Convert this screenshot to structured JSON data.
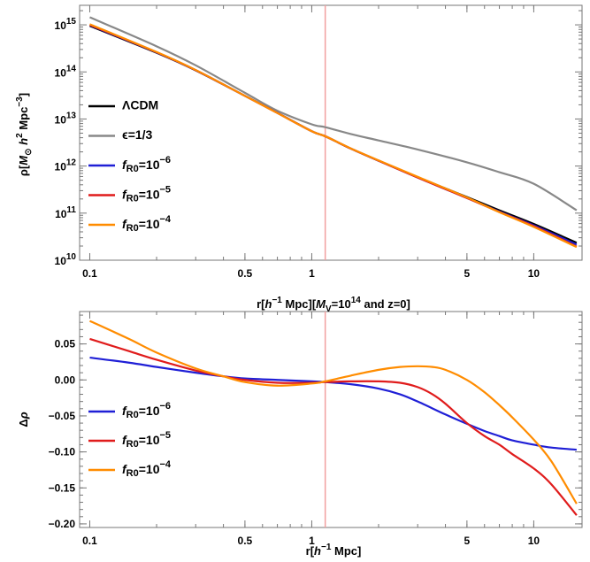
{
  "chart_data": [
    {
      "type": "line",
      "xscale": "log",
      "yscale": "log",
      "xlim": [
        0.09,
        16.5
      ],
      "ylim": [
        10000000000.0,
        2600000000000000.0
      ],
      "xticks": [
        0.1,
        0.5,
        1,
        5,
        10
      ],
      "xtick_labels": [
        "0.1",
        "0.5",
        "1",
        "5",
        "10"
      ],
      "yticks": [
        10000000000.0,
        100000000000.0,
        1000000000000.0,
        10000000000000.0,
        100000000000000.0,
        1000000000000000.0
      ],
      "ytick_labels": [
        {
          "base": "10",
          "exp": "10"
        },
        {
          "base": "10",
          "exp": "11"
        },
        {
          "base": "10",
          "exp": "12"
        },
        {
          "base": "10",
          "exp": "13"
        },
        {
          "base": "10",
          "exp": "14"
        },
        {
          "base": "10",
          "exp": "15"
        }
      ],
      "xlabel": {
        "pre": "r[",
        "italic1": "h",
        "sup1": "−1",
        "mid": " Mpc][",
        "italic2": "M",
        "sub2": "V",
        "post": "=10",
        "sup2": "14",
        "tail": " and z=0]"
      },
      "ylabel": {
        "pre": "ρ[",
        "italic1": "M",
        "sub1": "⊙",
        "mid": " ",
        "italic2": "h",
        "sup2": "2",
        "post": " Mpc",
        "sup3": "−3",
        "tail": "]"
      },
      "vline_x": 1.15,
      "legend_position": "left",
      "series": [
        {
          "name": "ΛCDM",
          "color": "#000000",
          "x": [
            0.1,
            0.2,
            0.3,
            0.5,
            0.7,
            1,
            1.15,
            1.5,
            2,
            3,
            5,
            7,
            10,
            15.6
          ],
          "y": [
            950000000000000.0,
            255000000000000.0,
            108000000000000.0,
            31000000000000.0,
            13500000000000.0,
            5500000000000.0,
            4300000000000.0,
            2350000000000.0,
            1300000000000.0,
            580000000000.0,
            220000000000.0,
            115000000000.0,
            59000000000.0,
            23500000000.0
          ]
        },
        {
          "name": "ϵ=1/3",
          "color": "#888888",
          "x": [
            0.1,
            0.2,
            0.3,
            0.5,
            0.7,
            1,
            1.15,
            1.5,
            2,
            3,
            5,
            7,
            10,
            15.6
          ],
          "y": [
            1450000000000000.0,
            350000000000000.0,
            138000000000000.0,
            36000000000000.0,
            15000000000000.0,
            7700000000000.0,
            6700000000000.0,
            4800000000000.0,
            3500000000000.0,
            2250000000000.0,
            1200000000000.0,
            740000000000.0,
            420000000000.0,
            115000000000.0
          ]
        },
        {
          "name": "f_R0=10^−6",
          "color": "#1f1fd6",
          "x": [
            0.1,
            0.2,
            0.3,
            0.5,
            0.7,
            1,
            1.15,
            1.5,
            2,
            3,
            5,
            7,
            10,
            15.6
          ],
          "y": [
            980000000000000.0,
            260000000000000.0,
            109000000000000.0,
            31000000000000.0,
            13500000000000.0,
            5500000000000.0,
            4300000000000.0,
            2350000000000.0,
            1300000000000.0,
            570000000000.0,
            210000000000.0,
            108000000000.0,
            55000000000.0,
            21500000000.0
          ]
        },
        {
          "name": "f_R0=10^−5",
          "color": "#e01c1c",
          "x": [
            0.1,
            0.2,
            0.3,
            0.5,
            0.7,
            1,
            1.15,
            1.5,
            2,
            3,
            5,
            7,
            10,
            15.6
          ],
          "y": [
            1000000000000000.0,
            262000000000000.0,
            109000000000000.0,
            31000000000000.0,
            13400000000000.0,
            5500000000000.0,
            4300000000000.0,
            2350000000000.0,
            1300000000000.0,
            570000000000.0,
            210000000000.0,
            106000000000.0,
            53000000000.0,
            19500000000.0
          ]
        },
        {
          "name": "f_R0=10^−4",
          "color": "#ff8c00",
          "x": [
            0.1,
            0.2,
            0.3,
            0.5,
            0.7,
            1,
            1.15,
            1.5,
            2,
            3,
            5,
            7,
            10,
            15.6
          ],
          "y": [
            1030000000000000.0,
            265000000000000.0,
            110000000000000.0,
            31000000000000.0,
            13400000000000.0,
            5500000000000.0,
            4300000000000.0,
            2370000000000.0,
            1320000000000.0,
            590000000000.0,
            215000000000.0,
            105000000000.0,
            51000000000.0,
            19000000000.0
          ]
        }
      ]
    },
    {
      "type": "line",
      "xscale": "log",
      "yscale": "linear",
      "xlim": [
        0.09,
        16.5
      ],
      "ylim": [
        -0.205,
        0.095
      ],
      "xticks": [
        0.1,
        0.5,
        1,
        5,
        10
      ],
      "xtick_labels": [
        "0.1",
        "0.5",
        "1",
        "5",
        "10"
      ],
      "yticks": [
        0.05,
        0.0,
        -0.05,
        -0.1,
        -0.15,
        -0.2
      ],
      "ytick_labels": [
        "0.05",
        "0.00",
        "−0.05",
        "−0.10",
        "−0.15",
        "−0.20"
      ],
      "xlabel": {
        "pre": "r[",
        "italic1": "h",
        "sup1": "−1",
        "tail": " Mpc]"
      },
      "ylabel": {
        "pre": "Δ",
        "italic1": "ρ"
      },
      "vline_x": 1.15,
      "legend_position": "left",
      "series": [
        {
          "name": "f_R0=10^−6",
          "color": "#1f1fd6",
          "x": [
            0.1,
            0.15,
            0.2,
            0.3,
            0.4,
            0.5,
            0.7,
            1,
            1.15,
            1.5,
            2,
            2.5,
            3,
            4,
            5,
            6,
            7,
            8,
            10,
            12,
            15.6
          ],
          "y": [
            0.031,
            0.024,
            0.018,
            0.01,
            0.005,
            0.002,
            0.0,
            -0.002,
            -0.003,
            -0.006,
            -0.012,
            -0.02,
            -0.03,
            -0.048,
            -0.061,
            -0.071,
            -0.078,
            -0.084,
            -0.09,
            -0.094,
            -0.097
          ]
        },
        {
          "name": "f_R0=10^−5",
          "color": "#e01c1c",
          "x": [
            0.1,
            0.15,
            0.2,
            0.3,
            0.4,
            0.5,
            0.7,
            1,
            1.15,
            1.5,
            2,
            2.5,
            3,
            3.5,
            4,
            5,
            6,
            7,
            8,
            10,
            12,
            15.6
          ],
          "y": [
            0.057,
            0.04,
            0.028,
            0.013,
            0.005,
            0.0,
            -0.004,
            -0.004,
            -0.003,
            -0.002,
            -0.002,
            -0.004,
            -0.01,
            -0.02,
            -0.033,
            -0.06,
            -0.078,
            -0.09,
            -0.103,
            -0.123,
            -0.145,
            -0.188
          ]
        },
        {
          "name": "f_R0=10^−4",
          "color": "#ff8c00",
          "x": [
            0.1,
            0.15,
            0.2,
            0.3,
            0.4,
            0.5,
            0.7,
            1,
            1.15,
            1.5,
            2,
            2.5,
            3,
            3.5,
            4,
            5,
            6,
            7,
            8,
            10,
            12,
            15.6
          ],
          "y": [
            0.082,
            0.057,
            0.038,
            0.016,
            0.005,
            -0.003,
            -0.008,
            -0.005,
            -0.002,
            0.006,
            0.014,
            0.018,
            0.019,
            0.018,
            0.014,
            0.0,
            -0.017,
            -0.035,
            -0.052,
            -0.083,
            -0.113,
            -0.172
          ]
        }
      ]
    }
  ]
}
